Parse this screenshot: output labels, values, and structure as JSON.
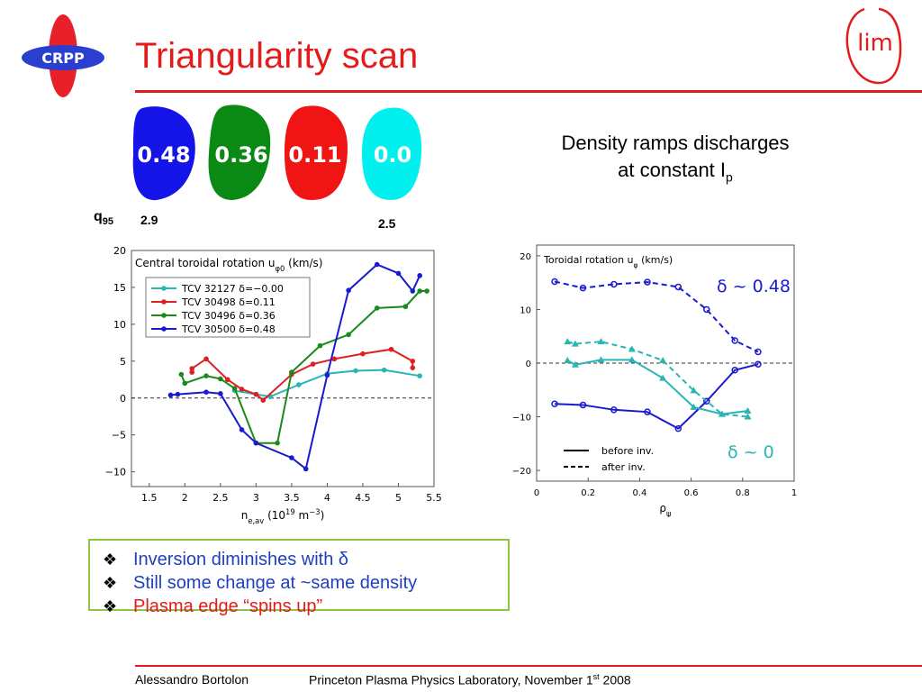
{
  "slide": {
    "title": "Triangularity scan",
    "logos": {
      "left": "CRPP",
      "right": "lim"
    },
    "shapes": [
      {
        "label": "0.48",
        "color": "#1414e8"
      },
      {
        "label": "0.36",
        "color": "#0a8a14"
      },
      {
        "label": "0.11",
        "color": "#f01414"
      },
      {
        "label": "0.0",
        "color": "#00f0f0"
      }
    ],
    "q95": {
      "label": "q",
      "sub": "95",
      "left_value": "2.9",
      "right_value": "2.5"
    },
    "description": {
      "line1": "Density ramps discharges",
      "line2": "at constant I",
      "line2_sub": "p"
    },
    "bullets": [
      {
        "text": "Inversion diminishes with δ",
        "color": "#1f3fbf"
      },
      {
        "text": "Still some change at ~same density",
        "color": "#1f3fbf"
      },
      {
        "text": "Plasma edge “spins up”",
        "color": "#e31b1b"
      }
    ],
    "footer": {
      "author": "Alessandro Bortolon",
      "venue": "Princeton Plasma Physics Laboratory, November 1",
      "venue_sup": "st",
      "venue_tail": " 2008"
    }
  },
  "chart_data": [
    {
      "type": "line",
      "title": "Central toroidal rotation u",
      "title_sub": "φ0",
      "title_tail": " (km/s)",
      "xlabel": "n",
      "xlabel_sub": "e,av",
      "xlabel_tail": " (10",
      "xlabel_sup": "19",
      "xlabel_tail2": " m",
      "xlabel_sup2": "−3",
      "xlabel_tail3": ")",
      "xlim": [
        1.25,
        5.5
      ],
      "ylim": [
        -12,
        20
      ],
      "xticks": [
        "1.5",
        "2",
        "2.5",
        "3",
        "3.5",
        "4",
        "4.5",
        "5",
        "5.5"
      ],
      "yticks": [
        "20",
        "15",
        "10",
        "5",
        "0",
        "−5",
        "−10"
      ],
      "legend": "top-left",
      "zero_line": true,
      "series": [
        {
          "name": "TCV 32127 δ=−0.00",
          "color": "#2ab5b5",
          "x": [
            2.7,
            3.0,
            3.2,
            3.6,
            4.0,
            4.4,
            4.8,
            5.3
          ],
          "y": [
            1.0,
            0.5,
            0.2,
            1.8,
            3.3,
            3.7,
            3.8,
            3.0
          ]
        },
        {
          "name": "TCV 30498 δ=0.11",
          "color": "#e02020",
          "x": [
            2.1,
            2.1,
            2.3,
            2.6,
            2.8,
            3.0,
            3.1,
            3.5,
            3.8,
            4.1,
            4.5,
            4.9,
            5.2,
            5.2
          ],
          "y": [
            3.5,
            4.0,
            5.3,
            2.5,
            1.2,
            0.5,
            -0.3,
            3.2,
            4.6,
            5.3,
            6.0,
            6.6,
            5.0,
            4.1
          ]
        },
        {
          "name": "TCV 30496 δ=0.36",
          "color": "#1a8a1a",
          "x": [
            1.95,
            2.0,
            2.3,
            2.5,
            2.7,
            3.0,
            3.3,
            3.5,
            3.9,
            4.3,
            4.7,
            5.1,
            5.3,
            5.4
          ],
          "y": [
            3.2,
            2.0,
            3.0,
            2.6,
            1.3,
            -6.1,
            -6.1,
            3.5,
            7.1,
            8.6,
            12.2,
            12.4,
            14.5,
            14.5
          ]
        },
        {
          "name": "TCV 30500 δ=0.48",
          "color": "#1a1ad0",
          "x": [
            1.8,
            1.9,
            2.3,
            2.5,
            2.8,
            3.0,
            3.5,
            3.7,
            4.0,
            4.3,
            4.7,
            5.0,
            5.2,
            5.3
          ],
          "y": [
            0.4,
            0.5,
            0.8,
            0.6,
            -4.3,
            -6.1,
            -8.1,
            -9.6,
            3.1,
            14.6,
            18.1,
            16.9,
            14.5,
            16.6
          ]
        }
      ]
    },
    {
      "type": "line",
      "title": "Toroidal rotation u",
      "title_sub": "φ",
      "title_tail": " (km/s)",
      "xlabel": "ρ",
      "xlabel_sub": "ψ",
      "xlim": [
        0,
        1
      ],
      "ylim": [
        -22,
        22
      ],
      "xticks": [
        "0",
        "0.2",
        "0.4",
        "0.6",
        "0.8",
        "1"
      ],
      "yticks": [
        "20",
        "10",
        "0",
        "−10",
        "−20"
      ],
      "legend_items": [
        {
          "label": "before inv.",
          "style": "solid"
        },
        {
          "label": "after inv.",
          "style": "dashed"
        }
      ],
      "annotations": [
        {
          "text": "δ ~ 0.48",
          "color": "#1a1ad0"
        },
        {
          "text": "δ ~ 0",
          "color": "#2ab5b5"
        }
      ],
      "zero_line": true,
      "series": [
        {
          "color": "#1a1ad0",
          "style": "dashed",
          "marker": "circle",
          "x": [
            0.07,
            0.18,
            0.3,
            0.43,
            0.55,
            0.66,
            0.77,
            0.86
          ],
          "y": [
            15.2,
            14.0,
            14.7,
            15.1,
            14.2,
            10.0,
            4.2,
            2.1
          ]
        },
        {
          "color": "#1a1ad0",
          "style": "solid",
          "marker": "circle",
          "x": [
            0.07,
            0.18,
            0.3,
            0.43,
            0.55,
            0.66,
            0.77,
            0.86
          ],
          "y": [
            -7.6,
            -7.8,
            -8.7,
            -9.1,
            -12.2,
            -7.1,
            -1.3,
            -0.2
          ]
        },
        {
          "color": "#2ab5b5",
          "style": "dashed",
          "marker": "triangle",
          "x": [
            0.12,
            0.15,
            0.25,
            0.37,
            0.49,
            0.61,
            0.72,
            0.82
          ],
          "y": [
            4.0,
            3.6,
            4.0,
            2.6,
            0.5,
            -5.1,
            -9.5,
            -10.0
          ]
        },
        {
          "color": "#2ab5b5",
          "style": "solid",
          "marker": "triangle",
          "x": [
            0.12,
            0.15,
            0.25,
            0.37,
            0.49,
            0.61,
            0.72,
            0.82
          ],
          "y": [
            0.5,
            -0.3,
            0.6,
            0.6,
            -2.8,
            -8.2,
            -9.5,
            -8.9
          ]
        }
      ]
    }
  ]
}
